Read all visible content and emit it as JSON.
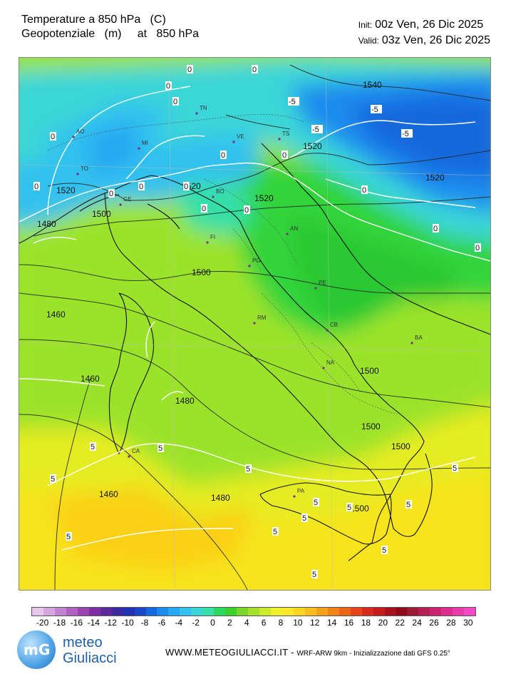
{
  "header": {
    "title_line1": "Temperature a 850 hPa   (C)",
    "title_line2": "Geopotenziale   (m)     at   850 hPa",
    "init_label": "Init:",
    "init_value": "00z Ven, 26 Dic 2025",
    "valid_label": "Valid:",
    "valid_value": "03z Ven, 26 Dic 2025"
  },
  "map_labels": {
    "cities": [
      {
        "name": "TN"
      },
      {
        "name": "AO"
      },
      {
        "name": "MI"
      },
      {
        "name": "VE"
      },
      {
        "name": "TS"
      },
      {
        "name": "TO"
      },
      {
        "name": "GE"
      },
      {
        "name": "BO"
      },
      {
        "name": "FI"
      },
      {
        "name": "AN"
      },
      {
        "name": "PG"
      },
      {
        "name": "PE"
      },
      {
        "name": "RM"
      },
      {
        "name": "CB"
      },
      {
        "name": "BA"
      },
      {
        "name": "NA"
      },
      {
        "name": "CA"
      },
      {
        "name": "PA"
      }
    ],
    "geopotential_contours": [
      "1540",
      "1520",
      "1520",
      "1520",
      "1520",
      "1520",
      "1500",
      "1500",
      "1500",
      "1500",
      "1500",
      "1500",
      "1480",
      "1480",
      "1480",
      "1460",
      "1460",
      "1460"
    ],
    "temperature_contours": [
      "0",
      "0",
      "0",
      "0",
      "0",
      "0",
      "0",
      "0",
      "0",
      "0",
      "0",
      "0",
      "0",
      "0",
      "0",
      "0",
      "-5",
      "-5",
      "-5",
      "-5",
      "5",
      "5",
      "5",
      "5",
      "5",
      "5",
      "5",
      "5",
      "5",
      "5",
      "5",
      "5",
      "5"
    ]
  },
  "legend": {
    "colors": [
      "#e8c6ec",
      "#d6a6df",
      "#c284d0",
      "#ae63c0",
      "#9a44b0",
      "#7d2ea4",
      "#5c2a9c",
      "#3a2ba0",
      "#2233b0",
      "#1a46c8",
      "#1668dd",
      "#1c8bee",
      "#27a8f2",
      "#33c1ef",
      "#3ad6d8",
      "#36e0a8",
      "#2ed860",
      "#3ad12c",
      "#7ad62a",
      "#a6e12c",
      "#cdeb2e",
      "#eef22c",
      "#fbe82a",
      "#fcd524",
      "#f9bd1e",
      "#f6a11a",
      "#f18318",
      "#ec6418",
      "#e64419",
      "#d82a1c",
      "#c41c1f",
      "#a8121e",
      "#8c0c1c",
      "#9c1a36",
      "#b41f54",
      "#cb2470",
      "#dd2d8e",
      "#e93aad",
      "#f24ac7"
    ],
    "ticks": [
      "-20",
      "-18",
      "-16",
      "-14",
      "-12",
      "-10",
      "-8",
      "-6",
      "-4",
      "-2",
      "0",
      "2",
      "4",
      "6",
      "8",
      "10",
      "12",
      "14",
      "16",
      "18",
      "20",
      "22",
      "24",
      "26",
      "28",
      "30"
    ]
  },
  "footer": {
    "brand_line1": "meteo",
    "brand_line2": "Giuliacci",
    "logo_mark": "mG",
    "site": "WWW.METEOGIULIACCI.IT -",
    "info": "WRF-ARW 9km - Inizializzazione dati GFS 0.25°"
  }
}
